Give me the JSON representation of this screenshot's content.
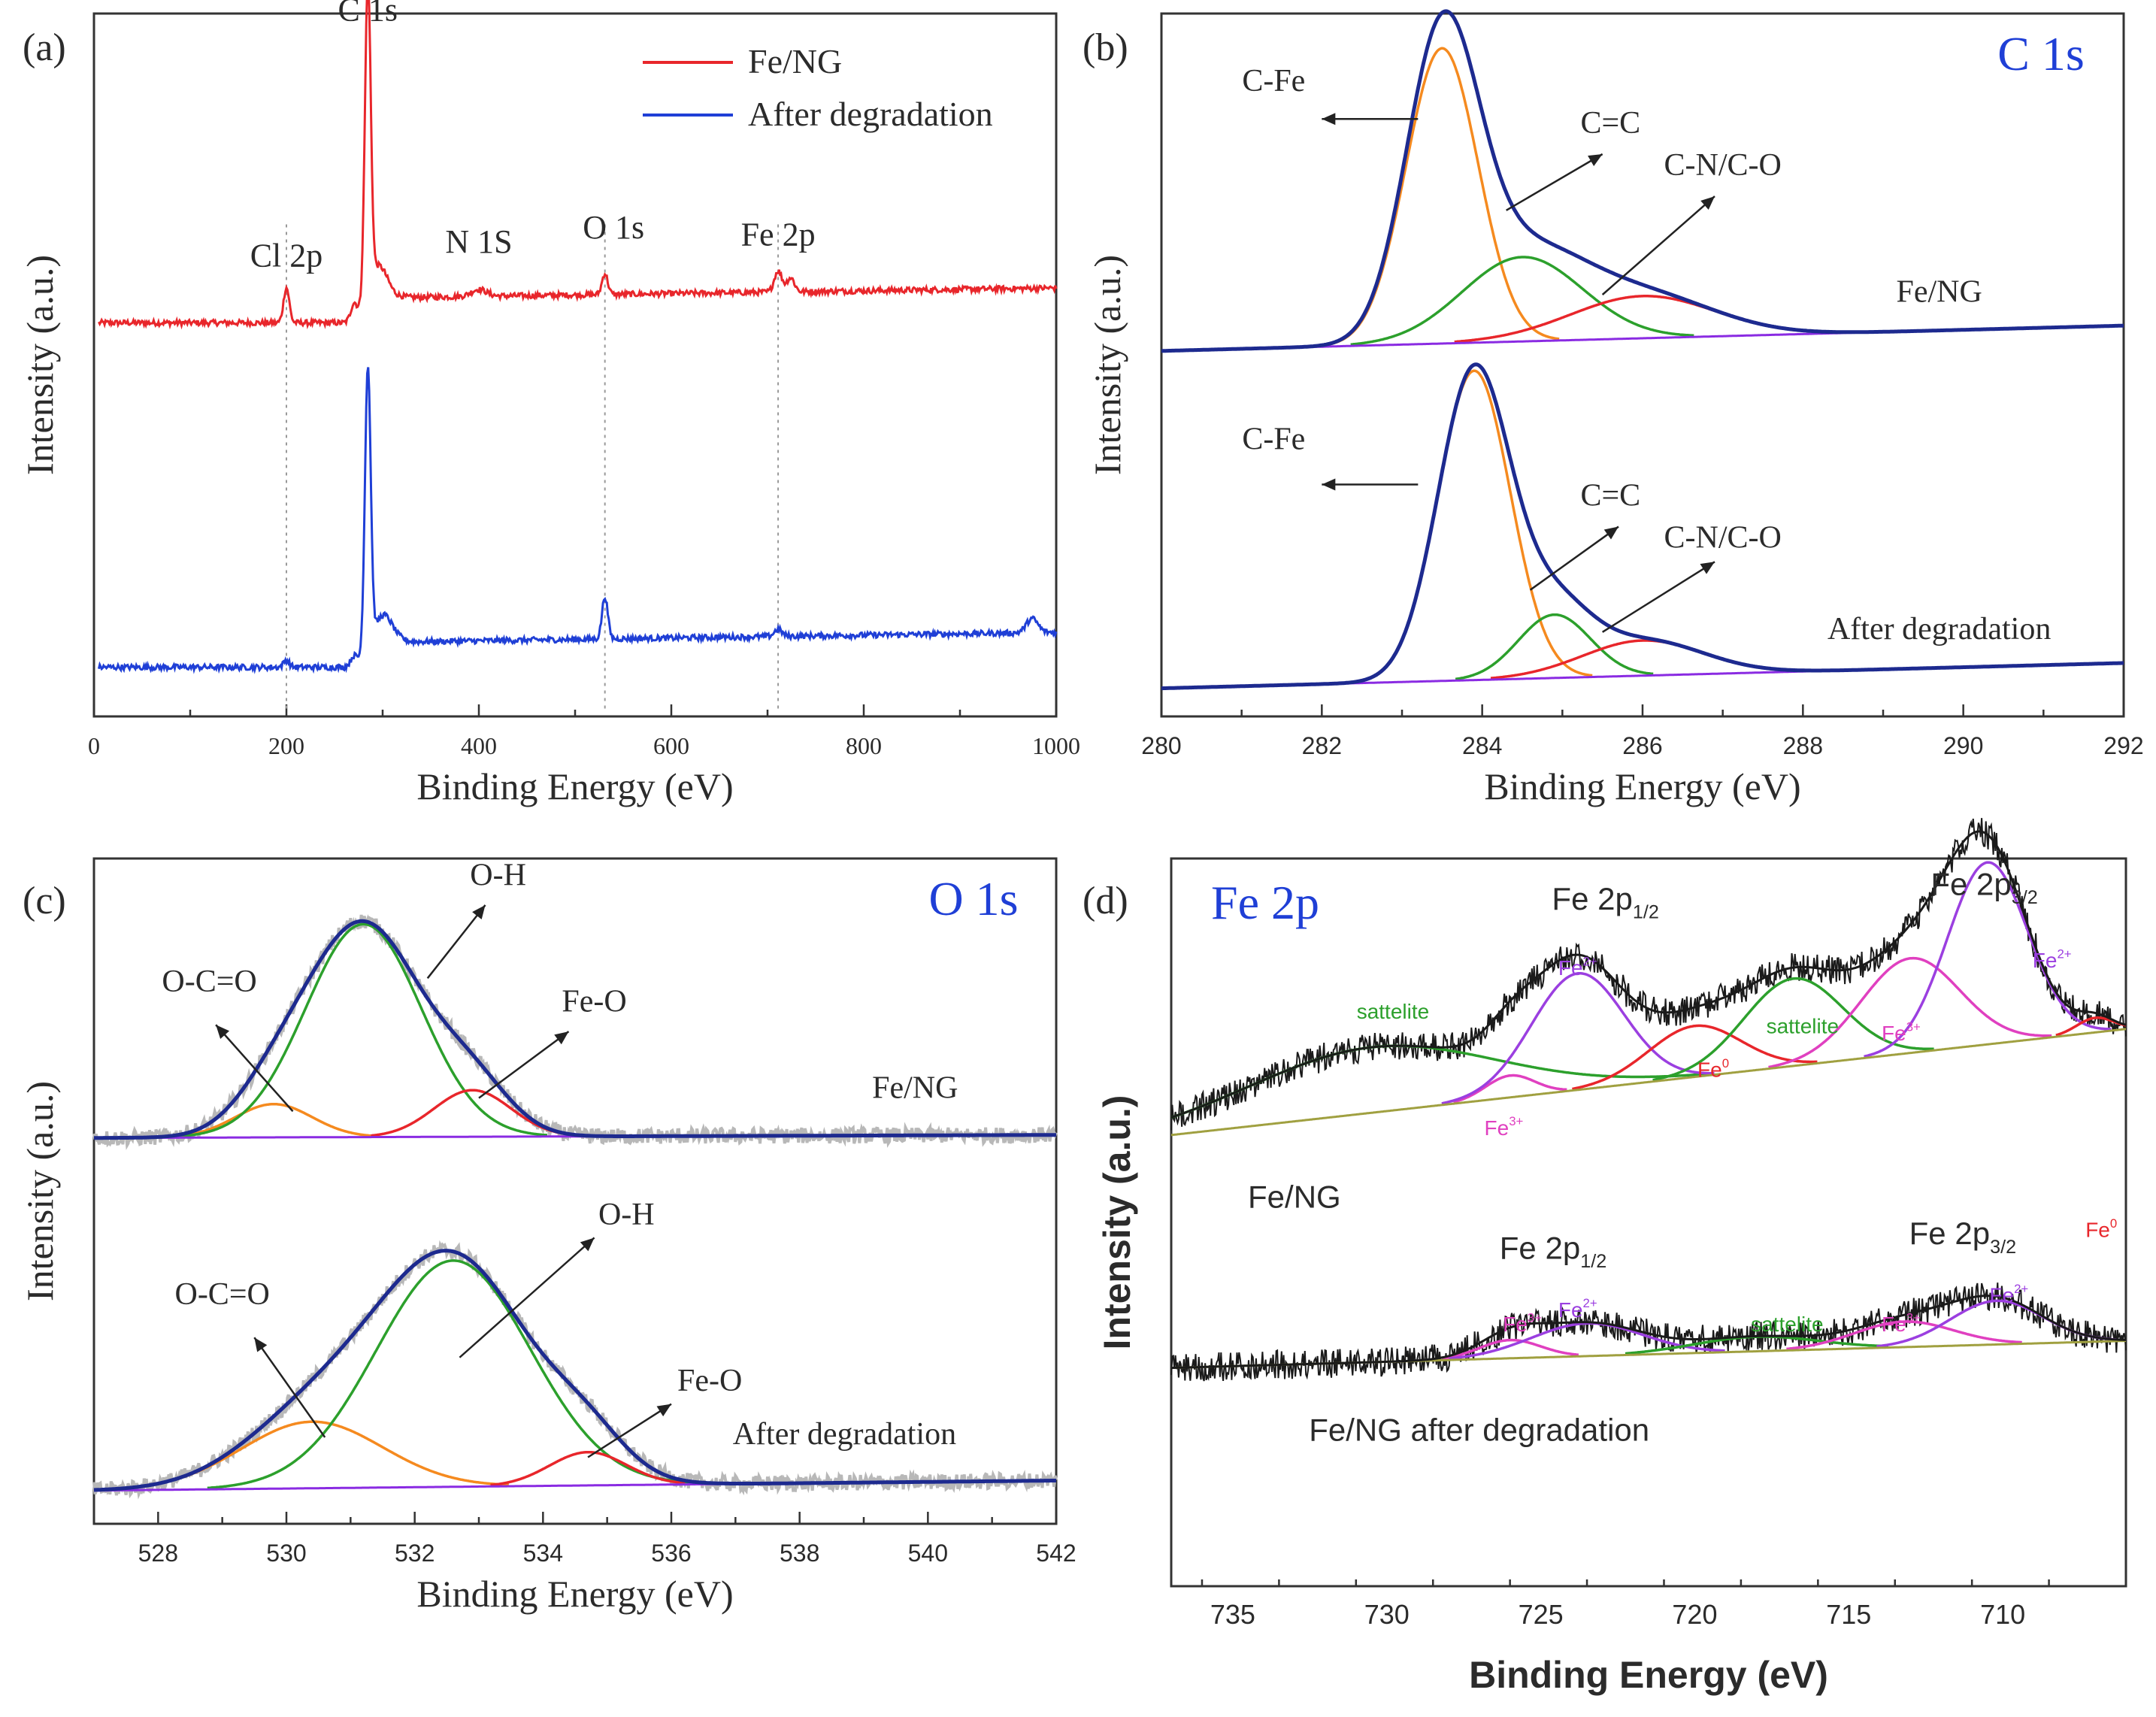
{
  "chart_data": [
    {
      "panel": "(a)",
      "type": "line",
      "title": "",
      "xlabel": "Binding Energy (eV)",
      "ylabel": "Intensity (a.u.)",
      "xlim": [
        0,
        1000
      ],
      "ylim": [
        0,
        1
      ],
      "xticks": [
        "0",
        "200",
        "400",
        "600",
        "800",
        "1000"
      ],
      "legend": [
        "Fe/NG",
        "After degradation"
      ],
      "legend_position": "top-right",
      "series": [
        {
          "name": "Fe/NG",
          "color": "#e8262b",
          "baseline": 0.56,
          "slope": 0.09,
          "peaks": [
            [
              200,
              0.05,
              3
            ],
            [
              270,
              0.02,
              3
            ],
            [
              284.6,
              0.44,
              3
            ],
            [
              295,
              0.06,
              10
            ],
            [
              400,
              0.01,
              8
            ],
            [
              531,
              0.03,
              3
            ],
            [
              711,
              0.03,
              4
            ],
            [
              724,
              0.02,
              4
            ]
          ]
        },
        {
          "name": "After degradation",
          "color": "#1f3fd6",
          "baseline": 0.07,
          "slope": 0.09,
          "peaks": [
            [
              200,
              0.01,
              3
            ],
            [
              270,
              0.01,
              3
            ],
            [
              284.6,
              0.4,
              3
            ],
            [
              300,
              0.05,
              10
            ],
            [
              531,
              0.06,
              3
            ],
            [
              711,
              0.01,
              4
            ],
            [
              975,
              0.02,
              6
            ]
          ]
        }
      ],
      "annotations": [
        {
          "text": "C 1s",
          "x": 284.6,
          "y": 0.99
        },
        {
          "text": "Cl 2p",
          "x": 200,
          "y": 0.64
        },
        {
          "text": "N 1S",
          "x": 400,
          "y": 0.66
        },
        {
          "text": "O 1s",
          "x": 540,
          "y": 0.68
        },
        {
          "text": "Fe 2p",
          "x": 711,
          "y": 0.67
        }
      ],
      "guides": [
        200,
        531,
        711
      ]
    },
    {
      "panel": "(b)",
      "type": "line",
      "title": "C 1s",
      "xlabel": "Binding Energy (eV)",
      "ylabel": "Intensity (a.u.)",
      "xlim": [
        280,
        292
      ],
      "ylim": [
        0,
        1
      ],
      "xticks": [
        "280",
        "282",
        "284",
        "286",
        "288",
        "290",
        "292"
      ],
      "stacks": [
        {
          "label": "Fe/NG",
          "baseline": 0.52,
          "baseline_slope": 0.003,
          "components": [
            {
              "name": "C-Fe",
              "center": 283.5,
              "height": 0.42,
              "width": 0.45,
              "color": "#f58a1f"
            },
            {
              "name": "C=C",
              "center": 284.5,
              "height": 0.12,
              "width": 0.75,
              "color": "#2ca02c"
            },
            {
              "name": "C-N/C-O",
              "center": 286.0,
              "height": 0.06,
              "width": 0.9,
              "color": "#e8262b"
            }
          ]
        },
        {
          "label": "After degradation",
          "baseline": 0.04,
          "baseline_slope": 0.003,
          "components": [
            {
              "name": "C-Fe",
              "center": 283.9,
              "height": 0.44,
              "width": 0.45,
              "color": "#f58a1f"
            },
            {
              "name": "C=C",
              "center": 284.9,
              "height": 0.09,
              "width": 0.45,
              "color": "#2ca02c"
            },
            {
              "name": "C-N/C-O",
              "center": 286.0,
              "height": 0.05,
              "width": 0.75,
              "color": "#e8262b"
            }
          ]
        }
      ],
      "annotations": [
        {
          "text": "C-Fe",
          "x": 281.4,
          "y": 0.89
        },
        {
          "text": "C=C",
          "x": 285.6,
          "y": 0.83
        },
        {
          "text": "C-N/C-O",
          "x": 287.0,
          "y": 0.77
        },
        {
          "text": "Fe/NG",
          "x": 289.7,
          "y": 0.59
        },
        {
          "text": "C-Fe",
          "x": 281.4,
          "y": 0.38
        },
        {
          "text": "C=C",
          "x": 285.6,
          "y": 0.3
        },
        {
          "text": "C-N/C-O",
          "x": 287.0,
          "y": 0.24
        },
        {
          "text": "After degradation",
          "x": 289.7,
          "y": 0.11
        }
      ]
    },
    {
      "panel": "(c)",
      "type": "line",
      "title": "O 1s",
      "xlabel": "Binding Energy (eV)",
      "ylabel": "Intensity (a.u.)",
      "xlim": [
        527,
        542
      ],
      "ylim": [
        0,
        1
      ],
      "xticks": [
        "528",
        "530",
        "532",
        "534",
        "536",
        "538",
        "540",
        "542"
      ],
      "stacks": [
        {
          "label": "Fe/NG",
          "baseline": 0.58,
          "baseline_slope": 0.0003,
          "components": [
            {
              "name": "O-C=O",
              "center": 529.8,
              "height": 0.05,
              "width": 0.6,
              "color": "#f58a1f"
            },
            {
              "name": "O-H",
              "center": 531.2,
              "height": 0.32,
              "width": 0.9,
              "color": "#2ca02c"
            },
            {
              "name": "Fe-O",
              "center": 532.9,
              "height": 0.07,
              "width": 0.6,
              "color": "#e8262b"
            }
          ]
        },
        {
          "label": "After degradation",
          "baseline": 0.05,
          "baseline_slope": 0.001,
          "components": [
            {
              "name": "O-C=O",
              "center": 530.4,
              "height": 0.1,
              "width": 1.1,
              "color": "#f58a1f"
            },
            {
              "name": "O-H",
              "center": 532.6,
              "height": 0.34,
              "width": 1.2,
              "color": "#2ca02c"
            },
            {
              "name": "Fe-O",
              "center": 534.7,
              "height": 0.05,
              "width": 0.6,
              "color": "#e8262b"
            }
          ]
        }
      ],
      "annotations": [
        {
          "text": "O-C=O",
          "x": 528.8,
          "y": 0.8
        },
        {
          "text": "O-H",
          "x": 533.3,
          "y": 0.96
        },
        {
          "text": "Fe-O",
          "x": 534.8,
          "y": 0.77
        },
        {
          "text": "Fe/NG",
          "x": 539.8,
          "y": 0.64
        },
        {
          "text": "O-C=O",
          "x": 529.0,
          "y": 0.33
        },
        {
          "text": "O-H",
          "x": 535.3,
          "y": 0.45
        },
        {
          "text": "Fe-O",
          "x": 536.6,
          "y": 0.2
        },
        {
          "text": "After degradation",
          "x": 538.7,
          "y": 0.12
        }
      ]
    },
    {
      "panel": "(d)",
      "type": "line",
      "title": "Fe 2p",
      "xlabel": "Binding Energy (eV)",
      "ylabel": "Intensity (a.u.)",
      "xlim": [
        737,
        706
      ],
      "ylim": [
        0,
        1
      ],
      "xticks": [
        "735",
        "730",
        "725",
        "720",
        "715",
        "710"
      ],
      "stacks": [
        {
          "label": "Fe/NG",
          "baseline": 0.62,
          "baseline_slope": 0.0047,
          "components": [
            {
              "name": "sattelite",
              "center": 730.5,
              "height": 0.09,
              "width": 4.0,
              "color": "#2ca02c"
            },
            {
              "name": "Fe3+",
              "center": 726.0,
              "height": 0.03,
              "width": 0.8,
              "color": "#e040c0"
            },
            {
              "name": "Fe2+",
              "center": 723.8,
              "height": 0.16,
              "width": 1.5,
              "color": "#9b3fe0"
            },
            {
              "name": "Fe0",
              "center": 720.0,
              "height": 0.07,
              "width": 1.5,
              "color": "#e8262b"
            },
            {
              "name": "sattelite",
              "center": 716.8,
              "height": 0.12,
              "width": 1.6,
              "color": "#2ca02c"
            },
            {
              "name": "Fe3+",
              "center": 713.0,
              "height": 0.13,
              "width": 1.6,
              "color": "#e040c0"
            },
            {
              "name": "Fe2+",
              "center": 710.5,
              "height": 0.25,
              "width": 1.3,
              "color": "#9b3fe0"
            },
            {
              "name": "Fe0",
              "center": 707.0,
              "height": 0.02,
              "width": 0.6,
              "color": "#e8262b"
            }
          ]
        },
        {
          "label": "Fe/NG after degradation",
          "baseline": 0.3,
          "baseline_slope": 0.0012,
          "components": [
            {
              "name": "Fe3+",
              "center": 726.0,
              "height": 0.025,
              "width": 1.0,
              "color": "#e040c0"
            },
            {
              "name": "Fe2+",
              "center": 723.5,
              "height": 0.045,
              "width": 1.8,
              "color": "#9b3fe0"
            },
            {
              "name": "sattelite",
              "center": 718.0,
              "height": 0.02,
              "width": 2.0,
              "color": "#2ca02c"
            },
            {
              "name": "Fe3+",
              "center": 713.2,
              "height": 0.035,
              "width": 1.6,
              "color": "#e040c0"
            },
            {
              "name": "Fe2+",
              "center": 710.2,
              "height": 0.06,
              "width": 1.5,
              "color": "#9b3fe0"
            }
          ]
        }
      ],
      "annotations": [
        {
          "text": "Fe 2p1/2",
          "x": 722.9,
          "y": 0.93
        },
        {
          "text": "Fe 2p3/2",
          "x": 710.6,
          "y": 0.95
        },
        {
          "text": "sattelite",
          "x": 729.8,
          "y": 0.78
        },
        {
          "text": "Fe2+",
          "x": 723.8,
          "y": 0.84
        },
        {
          "text": "Fe0",
          "x": 719.4,
          "y": 0.7
        },
        {
          "text": "sattelite",
          "x": 716.5,
          "y": 0.76
        },
        {
          "text": "Fe3+",
          "x": 713.3,
          "y": 0.75
        },
        {
          "text": "Fe2+",
          "x": 708.4,
          "y": 0.85
        },
        {
          "text": "Fe0",
          "x": 706.8,
          "y": 0.48
        },
        {
          "text": "Fe3+",
          "x": 726.2,
          "y": 0.62
        },
        {
          "text": "Fe/NG",
          "x": 733.0,
          "y": 0.52
        },
        {
          "text": "Fe 2p1/2",
          "x": 724.6,
          "y": 0.45
        },
        {
          "text": "Fe 2p3/2",
          "x": 711.3,
          "y": 0.47
        },
        {
          "text": "Fe3+",
          "x": 725.6,
          "y": 0.35
        },
        {
          "text": "Fe2+",
          "x": 723.8,
          "y": 0.37
        },
        {
          "text": "sattelite",
          "x": 717.0,
          "y": 0.35
        },
        {
          "text": "Fe3+",
          "x": 713.3,
          "y": 0.35
        },
        {
          "text": "Fe2+",
          "x": 709.8,
          "y": 0.39
        },
        {
          "text": "Fe/NG after degradation",
          "x": 727.0,
          "y": 0.2
        }
      ]
    }
  ],
  "colors": {
    "red": "#e8262b",
    "blue": "#1f3fd6",
    "navy": "#1d2a8f",
    "orange": "#f58a1f",
    "green": "#2ca02c",
    "purple": "#9b3fe0",
    "magenta": "#e040c0",
    "violet_baseline": "#8a2be2",
    "olive_baseline": "#a0a040",
    "gray_raw": "#b8b8b8",
    "black_raw": "#1a1a1a"
  }
}
